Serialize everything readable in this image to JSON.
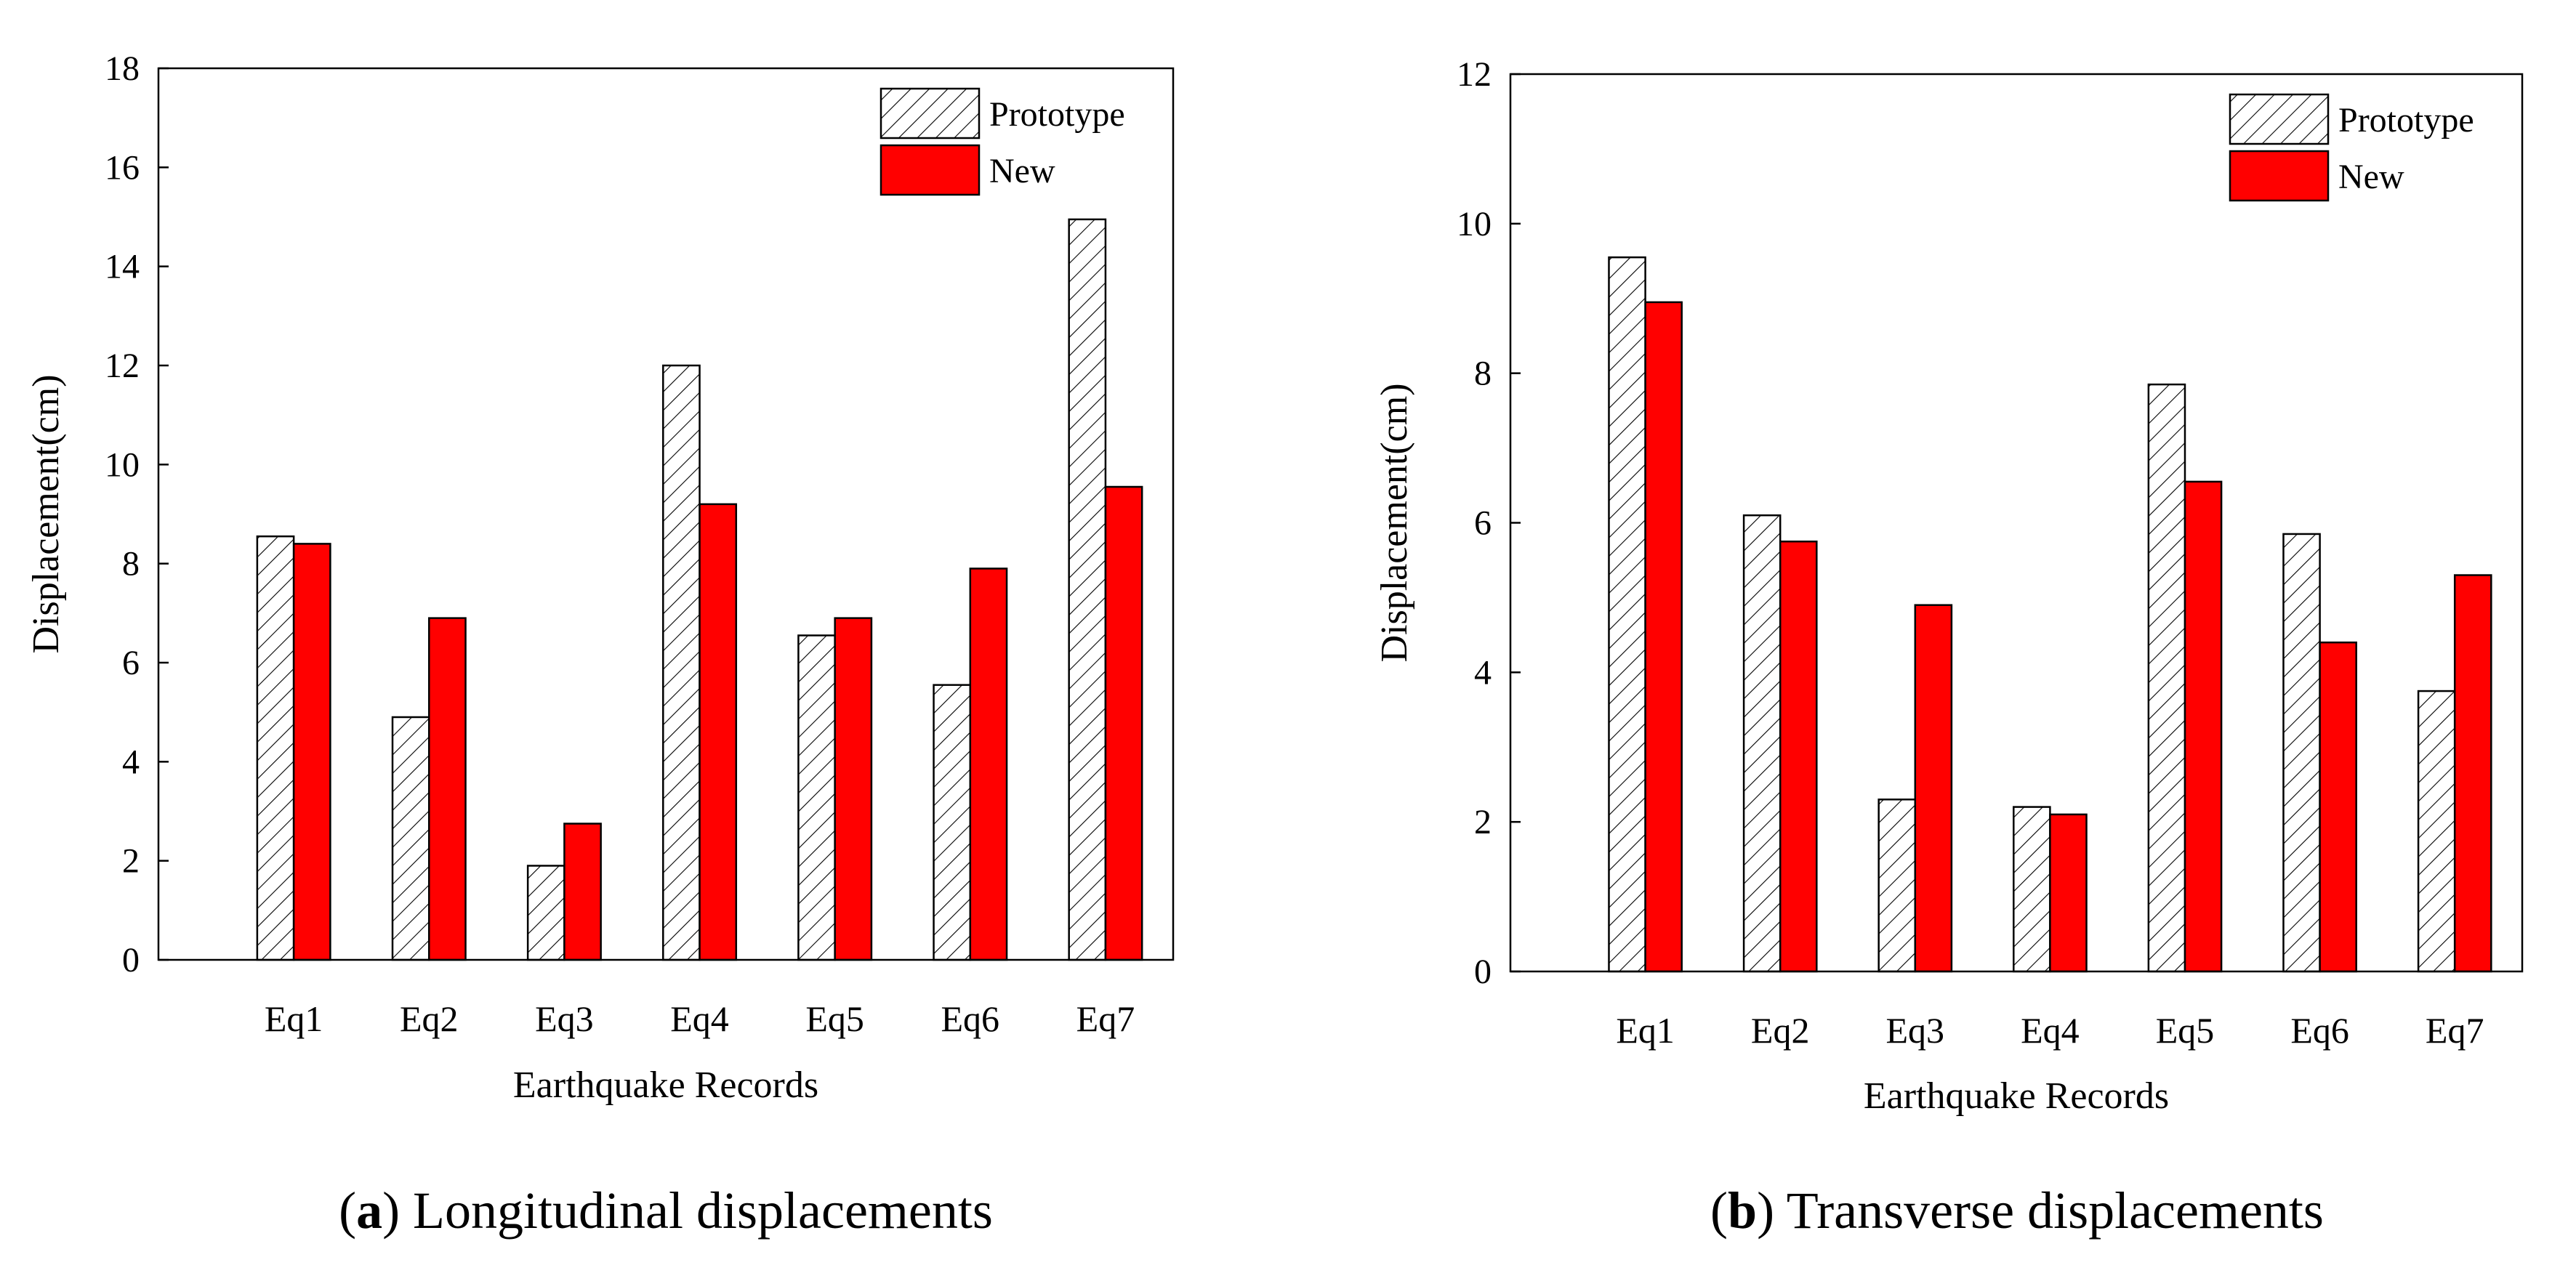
{
  "colors": {
    "new_fill": "#ff0000",
    "prototype_fill": "#ffffff",
    "stroke": "#000000"
  },
  "chart_data": [
    {
      "type": "bar",
      "panel_letter": "a",
      "caption_text": "Longitudinal displacements",
      "xlabel": "Earthquake Records",
      "ylabel": "Displacement(cm)",
      "ylim": [
        0,
        18
      ],
      "yticks": [
        0,
        2,
        4,
        6,
        8,
        10,
        12,
        14,
        16,
        18
      ],
      "categories": [
        "Eq1",
        "Eq2",
        "Eq3",
        "Eq4",
        "Eq5",
        "Eq6",
        "Eq7"
      ],
      "legend_position": "top-right",
      "series": [
        {
          "name": "Prototype",
          "pattern": "hatched",
          "values": [
            8.55,
            4.9,
            1.9,
            12.0,
            6.55,
            5.55,
            14.95
          ]
        },
        {
          "name": "New",
          "pattern": "solid-red",
          "values": [
            8.4,
            6.9,
            2.75,
            9.2,
            6.9,
            7.9,
            9.55
          ]
        }
      ]
    },
    {
      "type": "bar",
      "panel_letter": "b",
      "caption_text": "Transverse displacements",
      "xlabel": "Earthquake Records",
      "ylabel": "Displacement(cm)",
      "ylim": [
        0,
        12
      ],
      "yticks": [
        0,
        2,
        4,
        6,
        8,
        10,
        12
      ],
      "categories": [
        "Eq1",
        "Eq2",
        "Eq3",
        "Eq4",
        "Eq5",
        "Eq6",
        "Eq7"
      ],
      "legend_position": "top-right",
      "series": [
        {
          "name": "Prototype",
          "pattern": "hatched",
          "values": [
            9.55,
            6.1,
            2.3,
            2.2,
            7.85,
            5.85,
            3.75
          ]
        },
        {
          "name": "New",
          "pattern": "solid-red",
          "values": [
            8.95,
            5.75,
            4.9,
            2.1,
            6.55,
            4.4,
            5.3
          ]
        }
      ]
    }
  ]
}
